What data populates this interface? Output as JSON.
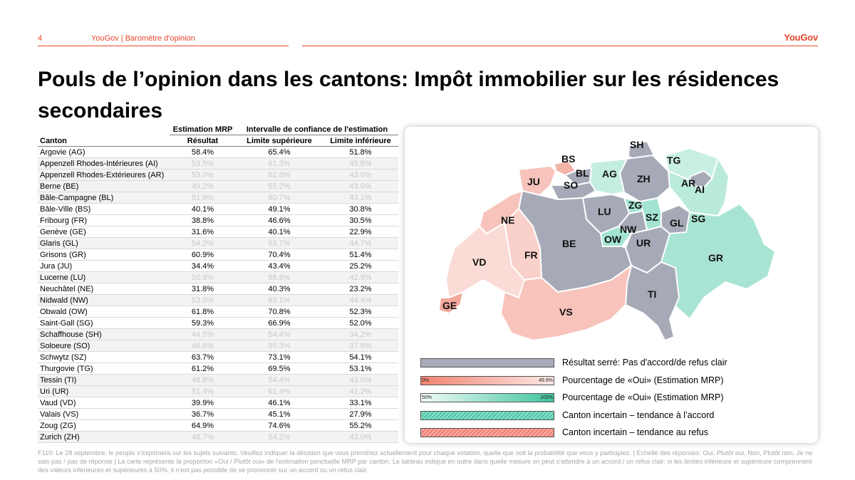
{
  "header": {
    "page_number": "4",
    "report": "YouGov | Baromètre d'opinion",
    "logo": "YouGov"
  },
  "title": "Pouls de l’opinion dans les cantons: Impôt immobilier sur les résidences secondaires",
  "table": {
    "group_headers": {
      "estimate": "Estimation MRP",
      "interval": "Intervalle de confiance de l'estimation"
    },
    "columns": [
      "Canton",
      "Résultat",
      "Limite supérieure",
      "Limite inférieure"
    ],
    "rows": [
      {
        "canton": "Argovie (AG)",
        "result": "58.4%",
        "upper": "65.4%",
        "lower": "51.8%",
        "muted": false
      },
      {
        "canton": "Appenzell Rhodes-Intérieures (AI)",
        "result": "53.5%",
        "upper": "61.3%",
        "lower": "45.8%",
        "muted": true
      },
      {
        "canton": "Appenzell Rhodes-Extérieures (AR)",
        "result": "53.0%",
        "upper": "62.8%",
        "lower": "43.0%",
        "muted": true
      },
      {
        "canton": "Berne (BE)",
        "result": "49.2%",
        "upper": "55.2%",
        "lower": "43.0%",
        "muted": true
      },
      {
        "canton": "Bâle-Campagne (BL)",
        "result": "51.9%",
        "upper": "60.7%",
        "lower": "43.1%",
        "muted": true
      },
      {
        "canton": "Bâle-Ville (BS)",
        "result": "40.1%",
        "upper": "49.1%",
        "lower": "30.8%",
        "muted": false
      },
      {
        "canton": "Fribourg (FR)",
        "result": "38.8%",
        "upper": "46.6%",
        "lower": "30.5%",
        "muted": false
      },
      {
        "canton": "Genève (GE)",
        "result": "31.6%",
        "upper": "40.1%",
        "lower": "22.9%",
        "muted": false
      },
      {
        "canton": "Glaris (GL)",
        "result": "54.2%",
        "upper": "63.7%",
        "lower": "44.7%",
        "muted": true
      },
      {
        "canton": "Grisons (GR)",
        "result": "60.9%",
        "upper": "70.4%",
        "lower": "51.4%",
        "muted": false
      },
      {
        "canton": "Jura (JU)",
        "result": "34.4%",
        "upper": "43.4%",
        "lower": "25.2%",
        "muted": false
      },
      {
        "canton": "Lucerne (LU)",
        "result": "50.9%",
        "upper": "58.8%",
        "lower": "42.9%",
        "muted": true
      },
      {
        "canton": "Neuchâtel (NE)",
        "result": "31.8%",
        "upper": "40.3%",
        "lower": "23.2%",
        "muted": false
      },
      {
        "canton": "Nidwald (NW)",
        "result": "53.9%",
        "upper": "63.1%",
        "lower": "44.4%",
        "muted": true
      },
      {
        "canton": "Obwald (OW)",
        "result": "61.8%",
        "upper": "70.8%",
        "lower": "52.3%",
        "muted": false
      },
      {
        "canton": "Saint-Gall (SG)",
        "result": "59.3%",
        "upper": "66.9%",
        "lower": "52.0%",
        "muted": false
      },
      {
        "canton": "Schaffhouse (SH)",
        "result": "44.5%",
        "upper": "54.4%",
        "lower": "34.2%",
        "muted": true
      },
      {
        "canton": "Soloeure (SO)",
        "result": "46.6%",
        "upper": "55.3%",
        "lower": "37.8%",
        "muted": true
      },
      {
        "canton": "Schwytz (SZ)",
        "result": "63.7%",
        "upper": "73.1%",
        "lower": "54.1%",
        "muted": false
      },
      {
        "canton": "Thurgovie (TG)",
        "result": "61.2%",
        "upper": "69.5%",
        "lower": "53.1%",
        "muted": false
      },
      {
        "canton": "Tessin (TI)",
        "result": "48.8%",
        "upper": "54.4%",
        "lower": "43.0%",
        "muted": true
      },
      {
        "canton": "Uri (UR)",
        "result": "51.4%",
        "upper": "61.4%",
        "lower": "41.2%",
        "muted": true
      },
      {
        "canton": "Vaud (VD)",
        "result": "39.9%",
        "upper": "46.1%",
        "lower": "33.1%",
        "muted": false
      },
      {
        "canton": "Valais (VS)",
        "result": "36.7%",
        "upper": "45.1%",
        "lower": "27.9%",
        "muted": false
      },
      {
        "canton": "Zoug (ZG)",
        "result": "64.9%",
        "upper": "74.6%",
        "lower": "55.2%",
        "muted": false
      },
      {
        "canton": "Zurich (ZH)",
        "result": "48.7%",
        "upper": "54.2%",
        "lower": "43.0%",
        "muted": true
      }
    ]
  },
  "map": {
    "colors": {
      "grey": "#a6aab7",
      "red_light": "#f7c3bb",
      "red": "#f4a89c",
      "green_light": "#c9efe4",
      "green": "#a3e3d1"
    },
    "labels": [
      "SH",
      "BS",
      "TG",
      "BL",
      "AG",
      "ZH",
      "JU",
      "SO",
      "AR",
      "AI",
      "ZG",
      "LU",
      "NE",
      "SZ",
      "SG",
      "GL",
      "NW",
      "OW",
      "UR",
      "BE",
      "FR",
      "GR",
      "VD",
      "TI",
      "GE",
      "VS"
    ]
  },
  "legend": [
    {
      "text": "Résultat serré: Pas d'accord/de refus clair",
      "style": "grey"
    },
    {
      "text": "Pourcentage de «Oui» (Estimation MRP)",
      "style": "red",
      "lo": "0%",
      "hi": "49.9%"
    },
    {
      "text": "Pourcentage de «Oui» (Estimation MRP)",
      "style": "green",
      "lo": "50%",
      "hi": "100%"
    },
    {
      "text": "Canton incertain – tendance à l’accord",
      "style": "hatch-green"
    },
    {
      "text": "Canton incertain – tendance au refus",
      "style": "hatch-red"
    }
  ],
  "footnote": "F110: Le 28 septembre, le peuple s'exprimera sur les sujets suivants. Veuillez indiquer la décision que vous prendriez actuellement pour chaque votation, quelle que soit la probabilité que vous y participiez. | Echelle des réponses: Oui, Plutôt oui, Non, Plutôt non, Je ne sais pas / pas de réponse | La carte représente la proportion «Oui / Plutôt oui» de l'estimation ponctuelle MRP par canton. Le tableau indique en outre dans quelle mesure on peut s'attendre à un accord / un refus clair: si les limites inférieure et supérieure comprennent des valeurs inférieures et supérieures à 50%, il n'est pas possible de se prononcer sur un accord ou un refus clair."
}
